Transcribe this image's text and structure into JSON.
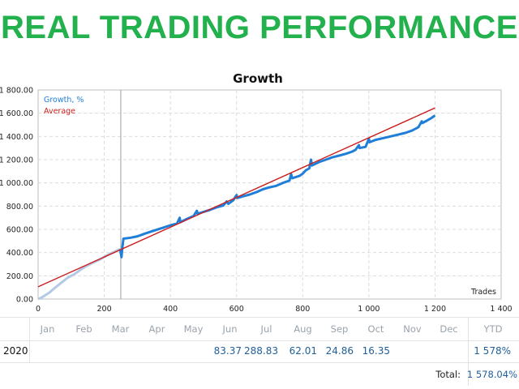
{
  "header": {
    "title": "REAL TRADING PERFORMANCE",
    "title_color": "#22b14c"
  },
  "chart_data": {
    "type": "line",
    "title": "Growth",
    "xlabel": "Trades",
    "ylabel": "",
    "xlim": [
      0,
      1400
    ],
    "ylim": [
      0,
      1800
    ],
    "x_ticks": [
      0,
      200,
      400,
      600,
      800,
      1000,
      1200,
      1400
    ],
    "x_tick_labels": [
      "0",
      "200",
      "400",
      "600",
      "800",
      "1 000",
      "1 200",
      "1 400"
    ],
    "y_ticks": [
      0,
      200,
      400,
      600,
      800,
      1000,
      1200,
      1400,
      1600,
      1800
    ],
    "y_tick_labels": [
      "0.00",
      "200.00",
      "400.00",
      "600.00",
      "800.00",
      "1 000.00",
      "1 200.00",
      "1 400.00",
      "1 600.00",
      "1 800.00"
    ],
    "legend_position": "top-left",
    "grid": true,
    "marker_x": 250,
    "series": [
      {
        "name": "Growth, %",
        "color": "#1f7ed8",
        "history_color": "#b4c9e4",
        "history_until_x": 250,
        "points": [
          [
            0,
            0
          ],
          [
            10,
            12
          ],
          [
            20,
            30
          ],
          [
            35,
            58
          ],
          [
            50,
            95
          ],
          [
            70,
            140
          ],
          [
            90,
            185
          ],
          [
            110,
            215
          ],
          [
            130,
            255
          ],
          [
            150,
            290
          ],
          [
            170,
            318
          ],
          [
            190,
            345
          ],
          [
            210,
            380
          ],
          [
            230,
            405
          ],
          [
            248,
            430
          ],
          [
            252,
            360
          ],
          [
            255,
            450
          ],
          [
            258,
            520
          ],
          [
            280,
            528
          ],
          [
            300,
            540
          ],
          [
            320,
            560
          ],
          [
            340,
            580
          ],
          [
            360,
            598
          ],
          [
            380,
            616
          ],
          [
            400,
            635
          ],
          [
            420,
            650
          ],
          [
            428,
            700
          ],
          [
            430,
            662
          ],
          [
            450,
            690
          ],
          [
            470,
            715
          ],
          [
            480,
            760
          ],
          [
            482,
            735
          ],
          [
            500,
            750
          ],
          [
            520,
            768
          ],
          [
            540,
            790
          ],
          [
            560,
            805
          ],
          [
            570,
            840
          ],
          [
            575,
            820
          ],
          [
            590,
            850
          ],
          [
            600,
            895
          ],
          [
            602,
            870
          ],
          [
            620,
            885
          ],
          [
            640,
            900
          ],
          [
            660,
            920
          ],
          [
            680,
            945
          ],
          [
            700,
            962
          ],
          [
            720,
            975
          ],
          [
            740,
            1000
          ],
          [
            760,
            1020
          ],
          [
            765,
            1075
          ],
          [
            768,
            1040
          ],
          [
            790,
            1060
          ],
          [
            800,
            1080
          ],
          [
            810,
            1110
          ],
          [
            820,
            1125
          ],
          [
            825,
            1200
          ],
          [
            828,
            1150
          ],
          [
            850,
            1180
          ],
          [
            870,
            1200
          ],
          [
            890,
            1220
          ],
          [
            910,
            1235
          ],
          [
            930,
            1250
          ],
          [
            950,
            1270
          ],
          [
            960,
            1285
          ],
          [
            970,
            1325
          ],
          [
            972,
            1300
          ],
          [
            990,
            1310
          ],
          [
            1000,
            1380
          ],
          [
            1002,
            1350
          ],
          [
            1020,
            1370
          ],
          [
            1050,
            1390
          ],
          [
            1080,
            1410
          ],
          [
            1110,
            1430
          ],
          [
            1130,
            1450
          ],
          [
            1150,
            1480
          ],
          [
            1160,
            1530
          ],
          [
            1162,
            1515
          ],
          [
            1175,
            1535
          ],
          [
            1190,
            1560
          ],
          [
            1200,
            1580
          ]
        ]
      },
      {
        "name": "Average",
        "color": "#cc1f1f",
        "points": [
          [
            0,
            105
          ],
          [
            1200,
            1645
          ]
        ]
      }
    ]
  },
  "table": {
    "months": [
      "Jan",
      "Feb",
      "Mar",
      "Apr",
      "May",
      "Jun",
      "Jul",
      "Aug",
      "Sep",
      "Oct",
      "Nov",
      "Dec"
    ],
    "ytd_label": "YTD",
    "year": "2020",
    "values": [
      "",
      "",
      "",
      "",
      "",
      "83.37",
      "288.83",
      "62.01",
      "24.86",
      "16.35",
      "",
      ""
    ],
    "ytd": "1 578%",
    "total_label": "Total:",
    "total_value": "1 578.04%"
  }
}
